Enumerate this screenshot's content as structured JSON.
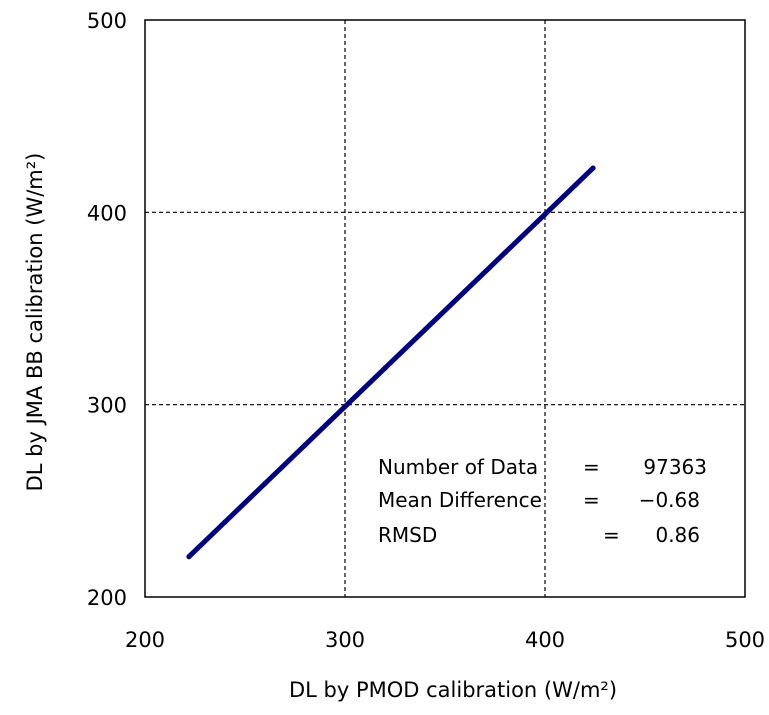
{
  "chart_data": {
    "type": "scatter",
    "title": "",
    "xlabel": "DL by PMOD calibration (W/m²)",
    "ylabel": "DL by JMA BB calibration (W/m²)",
    "xlim": [
      200,
      500
    ],
    "ylim": [
      200,
      500
    ],
    "xticks": [
      "200",
      "300",
      "400",
      "500"
    ],
    "yticks": [
      "200",
      "300",
      "400",
      "500"
    ],
    "grid": "dashed at 300 and 400",
    "series": [
      {
        "color": "#000080",
        "x": [
          222,
          240,
          260,
          280,
          300,
          320,
          340,
          360,
          380,
          400,
          415,
          424
        ],
        "y": [
          221,
          239,
          259,
          279,
          299,
          319,
          339,
          359,
          379,
          399,
          414,
          423
        ]
      }
    ],
    "annotations": [
      {
        "label": "Number of Data",
        "eq": "=",
        "value": "97363"
      },
      {
        "label": "Mean Difference",
        "eq": "=",
        "value": "−0.68"
      },
      {
        "label": "RMSD",
        "eq": "=",
        "value": "0.86"
      }
    ]
  }
}
